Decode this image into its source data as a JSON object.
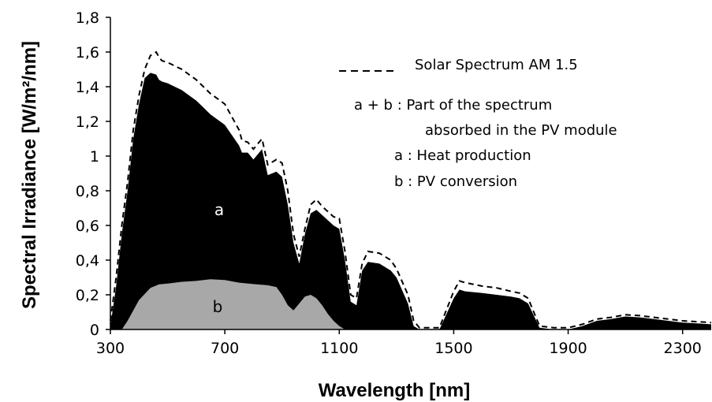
{
  "chart_data": {
    "type": "area",
    "xlabel": "Wavelength  [nm]",
    "ylabel": "Spectral Irradiance  [W/m²/nm]",
    "xlim": [
      300,
      2400
    ],
    "ylim": [
      0,
      1.8
    ],
    "x_ticks": [
      300,
      700,
      1100,
      1500,
      1900,
      2300
    ],
    "x_tick_labels": [
      "300",
      "700",
      "1100",
      "1500",
      "1900",
      "2300"
    ],
    "y_ticks": [
      0,
      0.2,
      0.4,
      0.6,
      0.8,
      1.0,
      1.2,
      1.4,
      1.6,
      1.8
    ],
    "y_tick_labels": [
      "0",
      "0,2",
      "0,4",
      "0,6",
      "0,8",
      "1",
      "1,2",
      "1,4",
      "1,6",
      "1,8"
    ],
    "legend": {
      "dashed_label": "Solar Spectrum AM 1.5",
      "ab_line1": "a + b : Part of the spectrum",
      "ab_line2": "absorbed in the PV module",
      "a_label": "a : Heat production",
      "b_label": "b : PV conversion"
    },
    "region_labels": {
      "a": "a",
      "b": "b"
    },
    "series": [
      {
        "name": "Solar Spectrum AM 1.5",
        "style": "dashed",
        "color": "#000000",
        "x": [
          300,
          320,
          340,
          360,
          380,
          400,
          420,
          440,
          460,
          470,
          480,
          500,
          550,
          600,
          650,
          700,
          750,
          760,
          780,
          800,
          830,
          850,
          880,
          900,
          920,
          940,
          960,
          980,
          1000,
          1020,
          1040,
          1080,
          1100,
          1120,
          1140,
          1160,
          1180,
          1200,
          1240,
          1260,
          1280,
          1300,
          1340,
          1360,
          1380,
          1400,
          1450,
          1500,
          1520,
          1540,
          1600,
          1650,
          1700,
          1730,
          1760,
          1780,
          1800,
          1850,
          1900,
          1950,
          2000,
          2050,
          2100,
          2150,
          2200,
          2250,
          2300,
          2350,
          2400
        ],
        "y": [
          0.05,
          0.3,
          0.6,
          0.85,
          1.15,
          1.35,
          1.5,
          1.58,
          1.6,
          1.57,
          1.55,
          1.54,
          1.5,
          1.44,
          1.36,
          1.3,
          1.15,
          1.09,
          1.08,
          1.04,
          1.1,
          0.95,
          0.98,
          0.96,
          0.8,
          0.55,
          0.42,
          0.58,
          0.72,
          0.75,
          0.71,
          0.65,
          0.64,
          0.45,
          0.2,
          0.18,
          0.38,
          0.45,
          0.44,
          0.42,
          0.4,
          0.35,
          0.2,
          0.05,
          0.01,
          0.01,
          0.01,
          0.22,
          0.28,
          0.27,
          0.25,
          0.24,
          0.22,
          0.21,
          0.18,
          0.1,
          0.02,
          0.01,
          0.01,
          0.03,
          0.06,
          0.07,
          0.085,
          0.08,
          0.07,
          0.06,
          0.05,
          0.045,
          0.04
        ]
      },
      {
        "name": "a : Heat production",
        "style": "filled",
        "color": "#000000",
        "x": [
          300,
          320,
          340,
          360,
          380,
          400,
          420,
          440,
          460,
          470,
          480,
          500,
          550,
          600,
          650,
          700,
          750,
          760,
          780,
          800,
          830,
          850,
          880,
          900,
          920,
          940,
          960,
          980,
          1000,
          1020,
          1040,
          1080,
          1100,
          1120,
          1140,
          1160,
          1180,
          1200,
          1240,
          1260,
          1280,
          1300,
          1340,
          1360,
          1380,
          1400,
          1450,
          1500,
          1520,
          1540,
          1600,
          1650,
          1700,
          1730,
          1760,
          1780,
          1800,
          1850,
          1900,
          1950,
          2000,
          2050,
          2100,
          2150,
          2200,
          2250,
          2300,
          2350,
          2400
        ],
        "y": [
          0.02,
          0.25,
          0.55,
          0.8,
          1.1,
          1.3,
          1.45,
          1.48,
          1.47,
          1.44,
          1.43,
          1.42,
          1.38,
          1.32,
          1.24,
          1.18,
          1.06,
          1.02,
          1.02,
          0.98,
          1.04,
          0.89,
          0.91,
          0.88,
          0.72,
          0.5,
          0.38,
          0.55,
          0.67,
          0.69,
          0.66,
          0.6,
          0.58,
          0.4,
          0.16,
          0.14,
          0.34,
          0.39,
          0.38,
          0.36,
          0.34,
          0.3,
          0.15,
          0.02,
          0.0,
          0.0,
          0.0,
          0.18,
          0.23,
          0.22,
          0.21,
          0.2,
          0.19,
          0.18,
          0.15,
          0.08,
          0.01,
          0.0,
          0.0,
          0.02,
          0.05,
          0.06,
          0.075,
          0.07,
          0.06,
          0.05,
          0.04,
          0.035,
          0.03
        ]
      },
      {
        "name": "b : PV conversion",
        "style": "filled",
        "color": "#a8a8a8",
        "x": [
          340,
          360,
          400,
          440,
          470,
          500,
          550,
          600,
          650,
          700,
          750,
          800,
          850,
          880,
          900,
          920,
          940,
          960,
          980,
          1000,
          1020,
          1040,
          1060,
          1080,
          1100,
          1120
        ],
        "y": [
          0.0,
          0.05,
          0.17,
          0.24,
          0.26,
          0.265,
          0.275,
          0.28,
          0.29,
          0.285,
          0.27,
          0.262,
          0.255,
          0.245,
          0.2,
          0.14,
          0.11,
          0.15,
          0.19,
          0.2,
          0.18,
          0.14,
          0.09,
          0.05,
          0.02,
          0.0
        ]
      }
    ]
  }
}
